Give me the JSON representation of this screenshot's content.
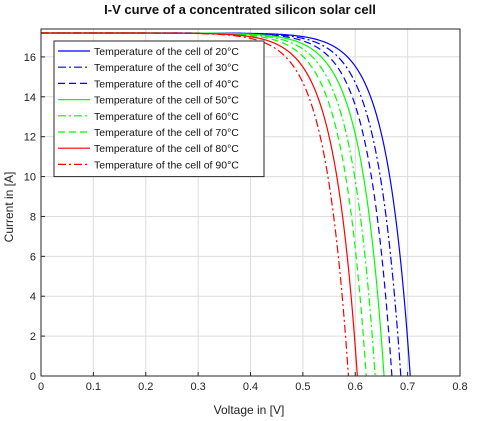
{
  "chart_data": {
    "type": "line",
    "title": "I-V curve of a concentrated silicon solar cell",
    "xlabel": "Voltage in [V]",
    "ylabel": "Current in [A]",
    "xlim": [
      0,
      0.8
    ],
    "ylim": [
      0,
      17.4
    ],
    "xticks": [
      0,
      0.1,
      0.2,
      0.3,
      0.4,
      0.5,
      0.6,
      0.7,
      0.8
    ],
    "xtick_labels": [
      "0",
      "0.1",
      "0.2",
      "0.3",
      "0.4",
      "0.5",
      "0.6",
      "0.7",
      "0.8"
    ],
    "yticks": [
      0,
      2,
      4,
      6,
      8,
      10,
      12,
      14,
      16
    ],
    "ytick_labels": [
      "0",
      "2",
      "4",
      "6",
      "8",
      "10",
      "12",
      "14",
      "16"
    ],
    "grid": true,
    "legend_position": "top-left",
    "isc": 17.2,
    "series": [
      {
        "name": "Temperature of the cell of 20°C",
        "voc": 0.705,
        "color": "#0000ff",
        "dash": "solid"
      },
      {
        "name": "Temperature of the cell of 30°C",
        "voc": 0.687,
        "color": "#0000ff",
        "dash": "dashdot"
      },
      {
        "name": "Temperature of the cell of 40°C",
        "voc": 0.67,
        "color": "#0000ff",
        "dash": "dashed"
      },
      {
        "name": "Temperature of the cell of 50°C",
        "voc": 0.655,
        "color": "#00ff00",
        "dash": "solid"
      },
      {
        "name": "Temperature of the cell of 60°C",
        "voc": 0.638,
        "color": "#00ff00",
        "dash": "dashdot"
      },
      {
        "name": "Temperature of the cell of 70°C",
        "voc": 0.621,
        "color": "#00ff00",
        "dash": "dashed"
      },
      {
        "name": "Temperature of the cell of 80°C",
        "voc": 0.604,
        "color": "#ff0000",
        "dash": "solid"
      },
      {
        "name": "Temperature of the cell of 90°C",
        "voc": 0.587,
        "color": "#ff0000",
        "dash": "dashdot"
      }
    ]
  }
}
